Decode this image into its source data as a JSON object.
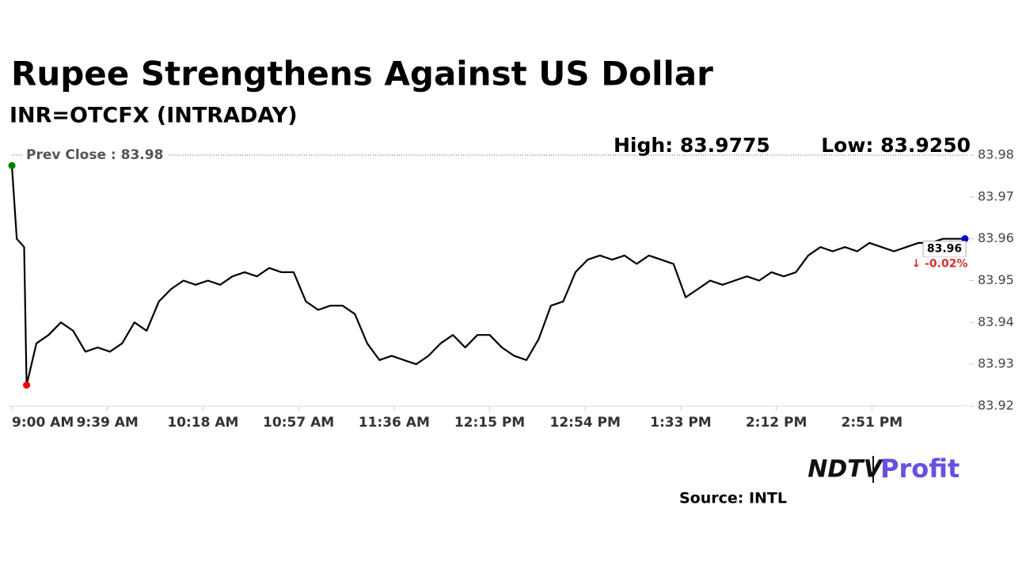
{
  "chart_data": {
    "type": "line",
    "title": "Rupee Strengthens Against US Dollar",
    "subtitle": "INR=OTCFX (INTRADAY)",
    "high_label": "High: 83.9775",
    "low_label": "Low: 83.9250",
    "reference_line": {
      "value": 83.98,
      "label": "Prev Close : 83.98"
    },
    "last_value_label": "83.96",
    "change_label": "↓ -0.02%",
    "source": "Source: INTL",
    "brand": [
      "NDTV",
      "Profit"
    ],
    "color": "#000000",
    "x": [
      "9:00 AM",
      "9:02 AM",
      "9:05 AM",
      "9:06 AM",
      "9:10 AM",
      "9:15 AM",
      "9:20 AM",
      "9:25 AM",
      "9:30 AM",
      "9:35 AM",
      "9:40 AM",
      "9:45 AM",
      "9:50 AM",
      "9:55 AM",
      "10:00 AM",
      "10:05 AM",
      "10:10 AM",
      "10:15 AM",
      "10:20 AM",
      "10:25 AM",
      "10:30 AM",
      "10:35 AM",
      "10:40 AM",
      "10:45 AM",
      "10:50 AM",
      "10:55 AM",
      "11:00 AM",
      "11:05 AM",
      "11:10 AM",
      "11:15 AM",
      "11:20 AM",
      "11:25 AM",
      "11:30 AM",
      "11:35 AM",
      "11:40 AM",
      "11:45 AM",
      "11:50 AM",
      "11:55 AM",
      "12:00 PM",
      "12:05 PM",
      "12:10 PM",
      "12:15 PM",
      "12:20 PM",
      "12:25 PM",
      "12:30 PM",
      "12:35 PM",
      "12:40 PM",
      "12:45 PM",
      "12:50 PM",
      "12:55 PM",
      "1:00 PM",
      "1:05 PM",
      "1:10 PM",
      "1:15 PM",
      "1:20 PM",
      "1:25 PM",
      "1:30 PM",
      "1:35 PM",
      "1:40 PM",
      "1:45 PM",
      "1:50 PM",
      "1:55 PM",
      "2:00 PM",
      "2:05 PM",
      "2:10 PM",
      "2:15 PM",
      "2:20 PM",
      "2:25 PM",
      "2:30 PM",
      "2:35 PM",
      "2:40 PM",
      "2:45 PM",
      "2:50 PM",
      "2:55 PM",
      "3:00 PM",
      "3:05 PM",
      "3:10 PM",
      "3:15 PM",
      "3:20 PM",
      "3:25 PM",
      "3:29 PM"
    ],
    "values": [
      83.9775,
      83.96,
      83.958,
      83.925,
      83.935,
      83.937,
      83.94,
      83.938,
      83.933,
      83.934,
      83.933,
      83.935,
      83.94,
      83.938,
      83.945,
      83.948,
      83.95,
      83.949,
      83.95,
      83.949,
      83.951,
      83.952,
      83.951,
      83.953,
      83.952,
      83.952,
      83.945,
      83.943,
      83.944,
      83.944,
      83.942,
      83.935,
      83.931,
      83.932,
      83.931,
      83.93,
      83.932,
      83.935,
      83.937,
      83.934,
      83.937,
      83.937,
      83.934,
      83.932,
      83.931,
      83.936,
      83.944,
      83.945,
      83.952,
      83.955,
      83.956,
      83.955,
      83.956,
      83.954,
      83.956,
      83.955,
      83.954,
      83.946,
      83.948,
      83.95,
      83.949,
      83.95,
      83.951,
      83.95,
      83.952,
      83.951,
      83.952,
      83.956,
      83.958,
      83.957,
      83.958,
      83.957,
      83.959,
      83.958,
      83.957,
      83.958,
      83.959,
      83.959,
      83.96,
      83.96,
      83.96
    ],
    "ylim": [
      83.92,
      83.98
    ],
    "yticks": [
      83.92,
      83.93,
      83.94,
      83.95,
      83.96,
      83.97,
      83.98
    ],
    "xticks": [
      "9:00 AM",
      "9:39 AM",
      "10:18 AM",
      "10:57 AM",
      "11:36 AM",
      "12:15 PM",
      "12:54 PM",
      "1:33 PM",
      "2:12 PM",
      "2:51 PM"
    ]
  }
}
